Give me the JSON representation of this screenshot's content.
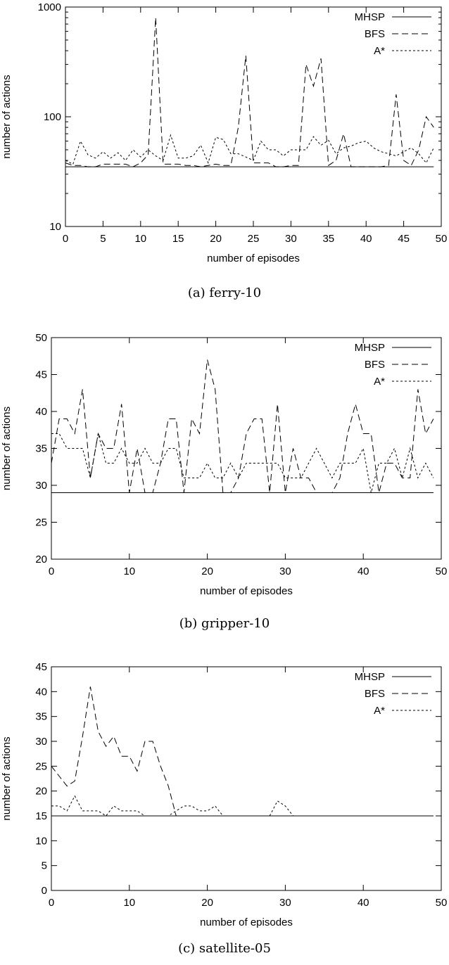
{
  "chart_data": [
    {
      "type": "line",
      "caption": "(a) ferry-10",
      "xlabel": "number of episodes",
      "ylabel": "number of actions",
      "xlim": [
        0,
        50
      ],
      "ylim": [
        10,
        1000
      ],
      "yscale": "log",
      "xticks": [
        0,
        5,
        10,
        15,
        20,
        25,
        30,
        35,
        40,
        45,
        50
      ],
      "yticks": [
        10,
        100,
        1000
      ],
      "grid": false,
      "legend_position": "top-right",
      "x": [
        0,
        1,
        2,
        3,
        4,
        5,
        6,
        7,
        8,
        9,
        10,
        11,
        12,
        13,
        14,
        15,
        16,
        17,
        18,
        19,
        20,
        21,
        22,
        23,
        24,
        25,
        26,
        27,
        28,
        29,
        30,
        31,
        32,
        33,
        34,
        35,
        36,
        37,
        38,
        39,
        40,
        41,
        42,
        43,
        44,
        45,
        46,
        47,
        48,
        49
      ],
      "series": [
        {
          "name": "MHSP",
          "color": "#000000",
          "dash": "",
          "values": [
            35,
            35,
            35,
            35,
            35,
            35,
            35,
            35,
            35,
            35,
            35,
            35,
            35,
            35,
            35,
            35,
            35,
            35,
            35,
            35,
            35,
            35,
            35,
            35,
            35,
            35,
            35,
            35,
            35,
            35,
            35,
            35,
            35,
            35,
            35,
            35,
            35,
            35,
            35,
            35,
            35,
            35,
            35,
            35,
            35,
            35,
            35,
            35,
            35,
            35
          ]
        },
        {
          "name": "BFS",
          "color": "#000000",
          "dash": "9,5",
          "values": [
            38,
            36,
            36,
            35,
            35,
            37,
            37,
            37,
            37,
            35,
            38,
            45,
            800,
            37,
            37,
            37,
            36,
            36,
            35,
            36,
            37,
            36,
            36,
            80,
            360,
            38,
            38,
            38,
            35,
            35,
            36,
            36,
            300,
            190,
            340,
            36,
            40,
            70,
            35,
            35,
            35,
            35,
            35,
            36,
            160,
            40,
            36,
            50,
            100,
            80
          ]
        },
        {
          "name": "A*",
          "color": "#000000",
          "dash": "3,3",
          "values": [
            40,
            37,
            60,
            45,
            42,
            48,
            42,
            47,
            40,
            50,
            43,
            50,
            44,
            40,
            68,
            42,
            42,
            44,
            55,
            38,
            65,
            62,
            46,
            46,
            43,
            40,
            60,
            50,
            50,
            44,
            50,
            50,
            50,
            66,
            55,
            61,
            46,
            52,
            54,
            58,
            60,
            52,
            48,
            46,
            44,
            48,
            52,
            46,
            38,
            52
          ]
        }
      ]
    },
    {
      "type": "line",
      "caption": "(b) gripper-10",
      "xlabel": "number of episodes",
      "ylabel": "number of actions",
      "xlim": [
        0,
        50
      ],
      "ylim": [
        20,
        50
      ],
      "xticks": [
        0,
        10,
        20,
        30,
        40,
        50
      ],
      "yticks": [
        20,
        25,
        30,
        35,
        40,
        45,
        50
      ],
      "grid": false,
      "legend_position": "top-right",
      "x": [
        0,
        1,
        2,
        3,
        4,
        5,
        6,
        7,
        8,
        9,
        10,
        11,
        12,
        13,
        14,
        15,
        16,
        17,
        18,
        19,
        20,
        21,
        22,
        23,
        24,
        25,
        26,
        27,
        28,
        29,
        30,
        31,
        32,
        33,
        34,
        35,
        36,
        37,
        38,
        39,
        40,
        41,
        42,
        43,
        44,
        45,
        46,
        47,
        48,
        49
      ],
      "series": [
        {
          "name": "MHSP",
          "color": "#000000",
          "dash": "",
          "values": [
            29,
            29,
            29,
            29,
            29,
            29,
            29,
            29,
            29,
            29,
            29,
            29,
            29,
            29,
            29,
            29,
            29,
            29,
            29,
            29,
            29,
            29,
            29,
            29,
            29,
            29,
            29,
            29,
            29,
            29,
            29,
            29,
            29,
            29,
            29,
            29,
            29,
            29,
            29,
            29,
            29,
            29,
            29,
            29,
            29,
            29,
            29,
            29,
            29,
            29
          ]
        },
        {
          "name": "BFS",
          "color": "#000000",
          "dash": "9,5",
          "values": [
            33,
            39,
            39,
            37,
            43,
            31,
            37,
            35,
            35,
            41,
            29,
            35,
            29,
            29,
            33,
            39,
            39,
            29,
            39,
            37,
            47,
            43,
            29,
            29,
            31,
            37,
            39,
            39,
            29,
            41,
            29,
            35,
            31,
            31,
            29,
            29,
            29,
            31,
            37,
            41,
            37,
            37,
            29,
            33,
            33,
            31,
            31,
            43,
            37,
            39
          ]
        },
        {
          "name": "A*",
          "color": "#000000",
          "dash": "3,3",
          "values": [
            37,
            37,
            35,
            35,
            35,
            31,
            37,
            33,
            33,
            35,
            33,
            33,
            35,
            33,
            33,
            35,
            35,
            31,
            31,
            31,
            33,
            31,
            31,
            33,
            31,
            33,
            33,
            33,
            33,
            33,
            31,
            31,
            31,
            33,
            35,
            33,
            31,
            33,
            33,
            33,
            35,
            29,
            33,
            33,
            35,
            31,
            35,
            31,
            33,
            31
          ]
        }
      ]
    },
    {
      "type": "line",
      "caption": "(c) satellite-05",
      "xlabel": "number of episodes",
      "ylabel": "number of actions",
      "xlim": [
        0,
        50
      ],
      "ylim": [
        0,
        45
      ],
      "xticks": [
        0,
        10,
        20,
        30,
        40,
        50
      ],
      "yticks": [
        0,
        5,
        10,
        15,
        20,
        25,
        30,
        35,
        40,
        45
      ],
      "grid": false,
      "legend_position": "top-right",
      "x": [
        0,
        1,
        2,
        3,
        4,
        5,
        6,
        7,
        8,
        9,
        10,
        11,
        12,
        13,
        14,
        15,
        16,
        17,
        18,
        19,
        20,
        21,
        22,
        23,
        24,
        25,
        26,
        27,
        28,
        29,
        30,
        31,
        32,
        33,
        34,
        35,
        36,
        37,
        38,
        39,
        40,
        41,
        42,
        43,
        44,
        45,
        46,
        47,
        48,
        49
      ],
      "series": [
        {
          "name": "MHSP",
          "color": "#000000",
          "dash": "",
          "values": [
            15,
            15,
            15,
            15,
            15,
            15,
            15,
            15,
            15,
            15,
            15,
            15,
            15,
            15,
            15,
            15,
            15,
            15,
            15,
            15,
            15,
            15,
            15,
            15,
            15,
            15,
            15,
            15,
            15,
            15,
            15,
            15,
            15,
            15,
            15,
            15,
            15,
            15,
            15,
            15,
            15,
            15,
            15,
            15,
            15,
            15,
            15,
            15,
            15,
            15
          ]
        },
        {
          "name": "BFS",
          "color": "#000000",
          "dash": "9,5",
          "values": [
            25,
            23,
            21,
            22,
            31,
            41,
            32,
            29,
            31,
            27,
            27,
            24,
            30,
            30,
            25,
            21,
            15,
            15,
            15,
            15,
            15,
            15,
            15,
            15,
            15,
            15,
            15,
            15,
            15,
            15,
            15,
            15,
            15,
            15,
            15,
            15,
            15,
            15,
            15,
            15,
            15,
            15,
            15,
            15,
            15,
            15,
            15,
            15,
            15,
            15
          ]
        },
        {
          "name": "A*",
          "color": "#000000",
          "dash": "3,3",
          "values": [
            17,
            17,
            16,
            19,
            16,
            16,
            16,
            15,
            17,
            16,
            16,
            16,
            15,
            15,
            15,
            15,
            16,
            17,
            17,
            16,
            16,
            17,
            15,
            15,
            15,
            15,
            15,
            15,
            15,
            18,
            17,
            15,
            15,
            15,
            15,
            15,
            15,
            15,
            15,
            15,
            15,
            15,
            15,
            15,
            15,
            15,
            15,
            15,
            15,
            15
          ]
        }
      ]
    }
  ]
}
